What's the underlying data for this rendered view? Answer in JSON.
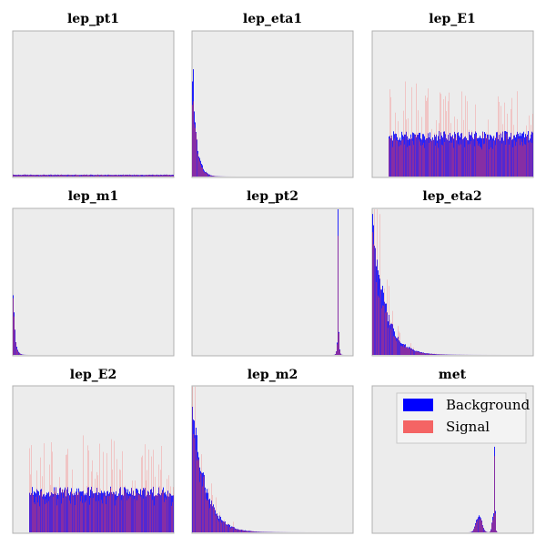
{
  "figure": {
    "colors": {
      "background_series": "#0000ff",
      "signal_series": "#ff3b3b",
      "panel": "#ececec"
    }
  },
  "legend": {
    "location": "upper-right of last panel",
    "entries": [
      {
        "label": "Background",
        "color": "#0000ff"
      },
      {
        "label": "Signal",
        "color": "#f46464"
      }
    ]
  },
  "chart_data": [
    {
      "type": "histogram",
      "title": "lep_pt1",
      "xlabel": "",
      "ylabel": "",
      "shape": "flat-near-zero",
      "series": [
        {
          "name": "Background"
        },
        {
          "name": "Signal"
        }
      ]
    },
    {
      "type": "histogram",
      "title": "lep_eta1",
      "xlabel": "",
      "ylabel": "",
      "shape": "sharp-falling-at-left",
      "series": [
        {
          "name": "Background"
        },
        {
          "name": "Signal"
        }
      ]
    },
    {
      "type": "histogram",
      "title": "lep_E1",
      "xlabel": "",
      "ylabel": "",
      "shape": "uniform-noisy",
      "series": [
        {
          "name": "Background"
        },
        {
          "name": "Signal"
        }
      ]
    },
    {
      "type": "histogram",
      "title": "lep_m1",
      "xlabel": "",
      "ylabel": "",
      "shape": "spike-at-left",
      "series": [
        {
          "name": "Background"
        },
        {
          "name": "Signal"
        }
      ]
    },
    {
      "type": "histogram",
      "title": "lep_pt2",
      "xlabel": "",
      "ylabel": "",
      "shape": "spike-at-right",
      "series": [
        {
          "name": "Background"
        },
        {
          "name": "Signal"
        }
      ]
    },
    {
      "type": "histogram",
      "title": "lep_eta2",
      "xlabel": "",
      "ylabel": "",
      "shape": "exponential-decay",
      "series": [
        {
          "name": "Background"
        },
        {
          "name": "Signal"
        }
      ]
    },
    {
      "type": "histogram",
      "title": "lep_E2",
      "xlabel": "",
      "ylabel": "",
      "shape": "uniform-noisy",
      "series": [
        {
          "name": "Background"
        },
        {
          "name": "Signal"
        }
      ]
    },
    {
      "type": "histogram",
      "title": "lep_m2",
      "xlabel": "",
      "ylabel": "",
      "shape": "exponential-decay",
      "series": [
        {
          "name": "Background"
        },
        {
          "name": "Signal"
        }
      ]
    },
    {
      "type": "histogram",
      "title": "met",
      "xlabel": "",
      "ylabel": "",
      "shape": "twin-peaks-right",
      "series": [
        {
          "name": "Background"
        },
        {
          "name": "Signal"
        }
      ]
    }
  ]
}
